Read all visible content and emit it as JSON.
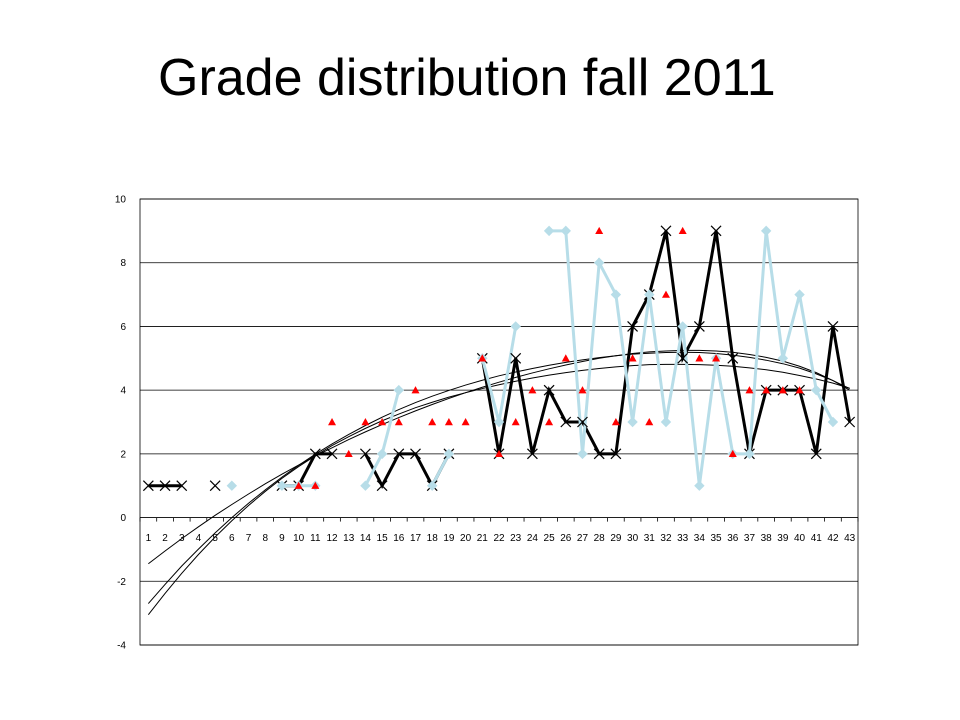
{
  "title": "Grade distribution fall 2011",
  "chart_data": {
    "type": "line",
    "title": "Grade distribution fall 2011",
    "xlabel": "",
    "ylabel": "",
    "x": [
      1,
      2,
      3,
      4,
      5,
      6,
      7,
      8,
      9,
      10,
      11,
      12,
      13,
      14,
      15,
      16,
      17,
      18,
      19,
      20,
      21,
      22,
      23,
      24,
      25,
      26,
      27,
      28,
      29,
      30,
      31,
      32,
      33,
      34,
      35,
      36,
      37,
      38,
      39,
      40,
      41,
      42,
      43
    ],
    "ylim": [
      -4,
      10
    ],
    "yticks": [
      "-4",
      "-2",
      "0",
      "2",
      "4",
      "6",
      "8",
      "10"
    ],
    "grid": "horizontal",
    "legend": "none",
    "series": [
      {
        "style": "black-line-x-markers",
        "color": "#000000",
        "values": [
          1,
          1,
          1,
          null,
          1,
          null,
          null,
          null,
          1,
          1,
          2,
          2,
          null,
          2,
          1,
          2,
          2,
          1,
          2,
          null,
          5,
          2,
          5,
          2,
          4,
          3,
          3,
          2,
          2,
          6,
          7,
          9,
          5,
          6,
          9,
          5,
          2,
          4,
          4,
          4,
          2,
          6,
          3
        ]
      },
      {
        "style": "light-blue-line-diamond-markers",
        "color": "#b7dde8",
        "values": [
          null,
          null,
          null,
          null,
          null,
          1,
          null,
          null,
          1,
          1,
          1,
          null,
          null,
          1,
          2,
          4,
          null,
          1,
          2,
          null,
          5,
          3,
          6,
          null,
          9,
          9,
          2,
          8,
          7,
          3,
          7,
          3,
          6,
          1,
          5,
          2,
          2,
          9,
          5,
          7,
          4,
          3,
          null
        ]
      },
      {
        "style": "red-triangle-markers",
        "color": "#ff0000",
        "values": [
          null,
          null,
          null,
          null,
          null,
          null,
          null,
          null,
          null,
          1,
          1,
          3,
          2,
          3,
          3,
          3,
          4,
          3,
          3,
          3,
          5,
          2,
          3,
          4,
          3,
          5,
          4,
          9,
          3,
          5,
          3,
          7,
          9,
          5,
          5,
          2,
          4,
          4,
          4,
          4,
          null,
          null,
          null
        ]
      },
      {
        "style": "trendline",
        "color": "#000000",
        "values": [
          -3.05,
          -2.38,
          -1.75,
          -1.16,
          -0.61,
          -0.1,
          0.38,
          0.82,
          1.23,
          1.6,
          1.94,
          2.26,
          2.54,
          2.8,
          3.04,
          3.25,
          3.45,
          3.62,
          3.78,
          3.92,
          4.05,
          4.17,
          4.28,
          4.38,
          4.47,
          4.55,
          4.62,
          4.68,
          4.73,
          4.77,
          4.8,
          4.81,
          4.81,
          4.8,
          4.78,
          4.75,
          4.7,
          4.64,
          4.56,
          4.46,
          4.35,
          4.22,
          4.06
        ]
      },
      {
        "style": "trendline",
        "color": "#000000",
        "values": [
          -2.7,
          -2.1,
          -1.52,
          -0.99,
          -0.48,
          0.0,
          0.45,
          0.87,
          1.27,
          1.64,
          1.99,
          2.31,
          2.61,
          2.89,
          3.15,
          3.39,
          3.61,
          3.81,
          3.99,
          4.16,
          4.31,
          4.45,
          4.57,
          4.68,
          4.78,
          4.87,
          4.95,
          5.02,
          5.08,
          5.13,
          5.16,
          5.18,
          5.19,
          5.18,
          5.15,
          5.1,
          5.03,
          4.94,
          4.83,
          4.69,
          4.51,
          4.3,
          4.05
        ]
      },
      {
        "style": "trendline",
        "color": "#000000",
        "values": [
          -1.45,
          -1.05,
          -0.66,
          -0.29,
          0.07,
          0.41,
          0.74,
          1.06,
          1.36,
          1.65,
          1.93,
          2.19,
          2.45,
          2.69,
          2.92,
          3.14,
          3.35,
          3.55,
          3.74,
          3.92,
          4.09,
          4.25,
          4.4,
          4.54,
          4.67,
          4.79,
          4.9,
          5.0,
          5.08,
          5.15,
          5.2,
          5.23,
          5.25,
          5.25,
          5.23,
          5.19,
          5.12,
          5.03,
          4.91,
          4.75,
          4.55,
          4.3,
          4.0
        ]
      }
    ]
  }
}
